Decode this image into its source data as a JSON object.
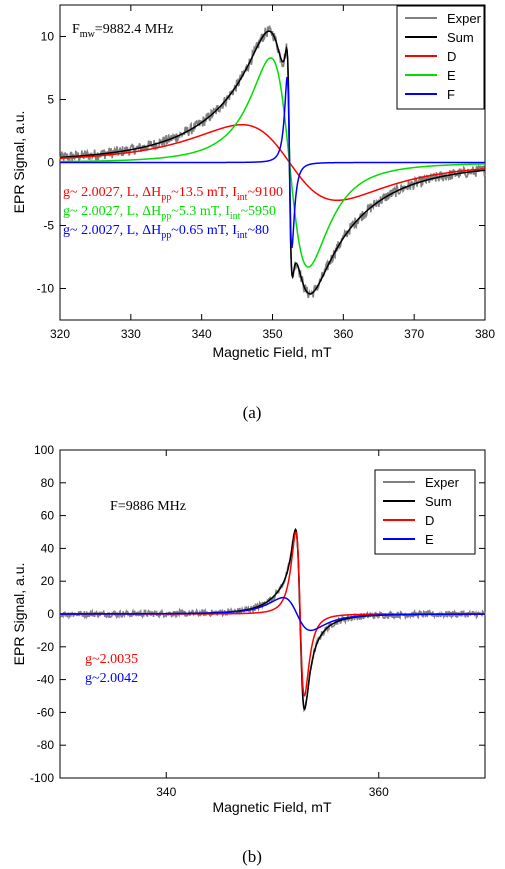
{
  "chart_data": [
    {
      "type": "line",
      "panel_label": "(a)",
      "xlabel": "Magnetic Field, mT",
      "ylabel": "EPR Signal, a.u.",
      "xlim": [
        320,
        380
      ],
      "ylim": [
        -12.5,
        12.5
      ],
      "xticks": [
        320,
        330,
        340,
        350,
        360,
        370,
        380
      ],
      "yticks": [
        -10,
        -5,
        0,
        5,
        10
      ],
      "legend_position": "top-right",
      "freq_annotation": {
        "prefix": "F",
        "sub": "mw",
        "suffix": "=9882.4 MHz"
      },
      "series": [
        {
          "name": "Exper",
          "color": "#808080",
          "kind": "noisy-sum"
        },
        {
          "name": "Sum",
          "color": "#000000",
          "kind": "sum"
        },
        {
          "name": "D",
          "color": "#ff0000",
          "kind": "lorentz-deriv",
          "center": 352.4,
          "dhpp": 13.5,
          "amp": 3.0
        },
        {
          "name": "E",
          "color": "#00dd00",
          "kind": "lorentz-deriv",
          "center": 352.4,
          "dhpp": 5.3,
          "amp": 8.3
        },
        {
          "name": "F",
          "color": "#0000ff",
          "kind": "lorentz-deriv",
          "center": 352.4,
          "dhpp": 0.65,
          "amp": 6.8
        }
      ],
      "annotations": [
        {
          "color": "#ff0000",
          "parts": [
            [
              "g~ 2.0027, L, ΔH",
              ""
            ],
            [
              "pp",
              "sub"
            ],
            [
              "~13.5 mT, I",
              ""
            ],
            [
              "int",
              "sub"
            ],
            [
              "~9100",
              ""
            ]
          ]
        },
        {
          "color": "#00dd00",
          "parts": [
            [
              "g~ 2.0027, L, ΔH",
              ""
            ],
            [
              "pp",
              "sub"
            ],
            [
              "~5.3 mT, I",
              ""
            ],
            [
              "int",
              "sub"
            ],
            [
              "~5950",
              ""
            ]
          ]
        },
        {
          "color": "#0000ff",
          "parts": [
            [
              "g~ 2.0027, L, ΔH",
              ""
            ],
            [
              "pp",
              "sub"
            ],
            [
              "~0.65 mT, I",
              ""
            ],
            [
              "int",
              "sub"
            ],
            [
              "~80",
              ""
            ]
          ]
        }
      ]
    },
    {
      "type": "line",
      "panel_label": "(b)",
      "xlabel": "Magnetic Field, mT",
      "ylabel": "EPR Signal, a.u.",
      "xlim": [
        330,
        370
      ],
      "ylim": [
        -100,
        100
      ],
      "xticks": [
        340,
        360
      ],
      "yticks": [
        -100,
        -80,
        -60,
        -40,
        -20,
        0,
        20,
        40,
        60,
        80,
        100
      ],
      "legend_position": "top-right",
      "freq_annotation": {
        "prefix": "F",
        "sub": "",
        "suffix": "=9886 MHz"
      },
      "series": [
        {
          "name": "Exper",
          "color": "#808080",
          "kind": "noisy-sum"
        },
        {
          "name": "Sum",
          "color": "#000000",
          "kind": "sum"
        },
        {
          "name": "D",
          "color": "#ff0000",
          "kind": "lorentz-deriv",
          "center": 352.6,
          "dhpp": 0.8,
          "amp": 50
        },
        {
          "name": "E",
          "color": "#0000ff",
          "kind": "lorentz-deriv",
          "center": 352.3,
          "dhpp": 2.6,
          "amp": 10
        }
      ],
      "annotations": [
        {
          "color": "#ff0000",
          "parts": [
            [
              "g~2.0035",
              ""
            ]
          ]
        },
        {
          "color": "#0000ff",
          "parts": [
            [
              "g~2.0042",
              ""
            ]
          ]
        }
      ]
    }
  ]
}
